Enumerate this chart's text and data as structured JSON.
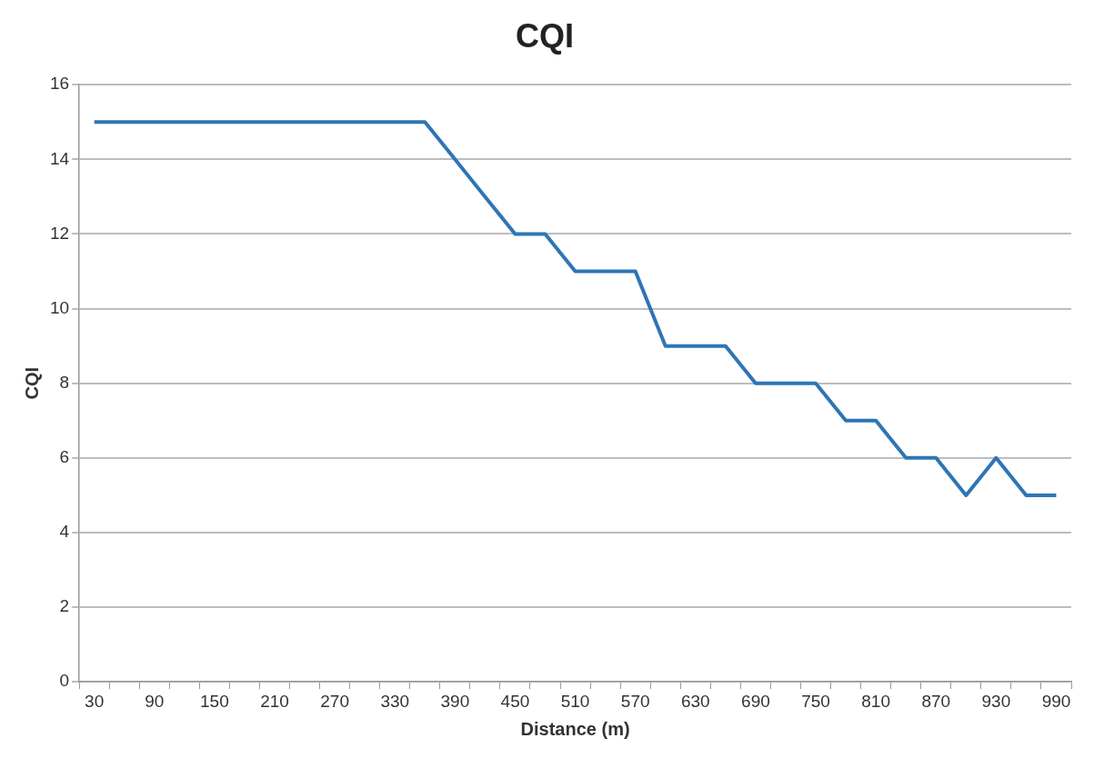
{
  "chart_data": {
    "type": "line",
    "title": "CQI",
    "xlabel": "Distance (m)",
    "ylabel": "CQI",
    "categories": [
      "30",
      null,
      "90",
      null,
      "150",
      null,
      "210",
      null,
      "270",
      null,
      "330",
      null,
      "390",
      null,
      "450",
      null,
      "510",
      null,
      "570",
      null,
      "630",
      null,
      "690",
      null,
      "750",
      null,
      "810",
      null,
      "870",
      null,
      "930",
      null,
      "990"
    ],
    "series": [
      {
        "color": "#2e75b6",
        "values": [
          15,
          15,
          15,
          15,
          15,
          15,
          15,
          15,
          15,
          15,
          15,
          15,
          14,
          13,
          12,
          12,
          11,
          11,
          11,
          9,
          9,
          9,
          8,
          8,
          8,
          7,
          7,
          6,
          6,
          5,
          6,
          5,
          5
        ]
      }
    ],
    "ylim": [
      0,
      16
    ],
    "yticks": [
      0,
      2,
      4,
      6,
      8,
      10,
      12,
      14,
      16
    ],
    "grid": "y",
    "legend": false,
    "marker": "none",
    "line_style": "solid"
  }
}
